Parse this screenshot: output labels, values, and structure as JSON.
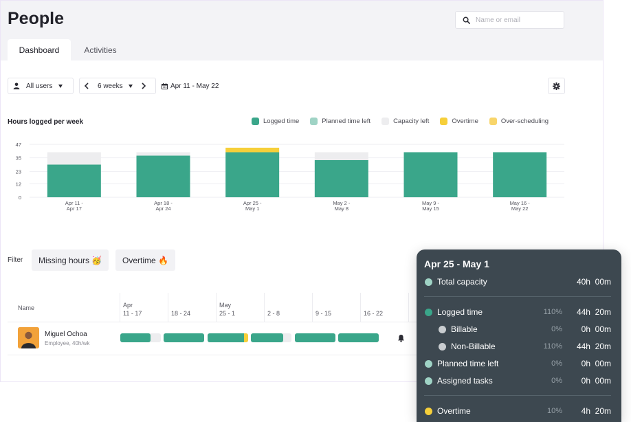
{
  "page": {
    "title": "People"
  },
  "search": {
    "placeholder": "Name or email"
  },
  "tabs": [
    {
      "label": "Dashboard",
      "active": true
    },
    {
      "label": "Activities",
      "active": false
    }
  ],
  "controls": {
    "users_label": "All users",
    "weeks_label": "6 weeks",
    "date_range": "Apr 11 - May 22"
  },
  "chart": {
    "title": "Hours logged per week"
  },
  "legend": [
    {
      "label": "Logged time",
      "color": "#3aa68a"
    },
    {
      "label": "Planned time left",
      "color": "#9fd3c5"
    },
    {
      "label": "Capacity left",
      "color": "#ededef"
    },
    {
      "label": "Overtime",
      "color": "#f6cf3a"
    },
    {
      "label": "Over-scheduling",
      "color": "#f8d56a"
    }
  ],
  "chart_data": {
    "type": "bar",
    "stacked": true,
    "title": "Hours logged per week",
    "categories": [
      "Apr 11 - Apr 17",
      "Apr 18 - Apr 24",
      "Apr 25 - May 1",
      "May 2 - May 8",
      "May 9 - May 15",
      "May 16 - May 22"
    ],
    "category_lines": [
      [
        "Apr 11 -",
        "Apr 17"
      ],
      [
        "Apr 18 -",
        "Apr 24"
      ],
      [
        "Apr 25 -",
        "May 1"
      ],
      [
        "May 2 -",
        "May 8"
      ],
      [
        "May 9 -",
        "May 15"
      ],
      [
        "May 16 -",
        "May 22"
      ]
    ],
    "yticks": [
      0,
      12,
      23,
      35,
      47
    ],
    "ylim": [
      0,
      47
    ],
    "series": [
      {
        "name": "Logged time",
        "color": "#3aa68a",
        "values": [
          29,
          37,
          40,
          33,
          40,
          40
        ]
      },
      {
        "name": "Capacity left",
        "color": "#ededef",
        "values": [
          11,
          3,
          0,
          7,
          0,
          0
        ]
      },
      {
        "name": "Overtime",
        "color": "#f6cf3a",
        "values": [
          0,
          0,
          4,
          0,
          0,
          0
        ]
      }
    ],
    "grid": true,
    "legend_position": "top-right"
  },
  "filter": {
    "label": "Filter",
    "chips": [
      {
        "label": "Missing hours 🥳"
      },
      {
        "label": "Overtime 🔥"
      }
    ]
  },
  "table": {
    "name_header": "Name",
    "week_columns": [
      {
        "month": "Apr",
        "range": "11 - 17"
      },
      {
        "month": "",
        "range": "18 - 24"
      },
      {
        "month": "May",
        "range": "25 - 1"
      },
      {
        "month": "",
        "range": "2 - 8"
      },
      {
        "month": "",
        "range": "9 - 15"
      },
      {
        "month": "",
        "range": "16 - 22"
      }
    ],
    "rows": [
      {
        "name": "Miguel Ochoa",
        "role": "Employee, 40h/wk",
        "weeks": [
          {
            "logged": 0.75,
            "overtime": 0
          },
          {
            "logged": 1.0,
            "overtime": 0
          },
          {
            "logged": 0.9,
            "overtime": 0.1
          },
          {
            "logged": 0.8,
            "overtime": 0
          },
          {
            "logged": 1.0,
            "overtime": 0
          },
          {
            "logged": 1.0,
            "overtime": 0
          }
        ]
      }
    ]
  },
  "tooltip": {
    "title": "Apr 25 - May 1",
    "rows": [
      {
        "label": "Total capacity",
        "percent": "",
        "value": "40h  00m",
        "dot_color": "#9fd3c5",
        "indent": false
      },
      {
        "label": "Logged time",
        "percent": "110%",
        "value": "44h  20m",
        "dot_color": "#3aa68a",
        "indent": false
      },
      {
        "label": "Billable",
        "percent": "0%",
        "value": "0h  00m",
        "dot_color": "#c9cdd0",
        "indent": true
      },
      {
        "label": "Non-Billable",
        "percent": "110%",
        "value": "44h  20m",
        "dot_color": "#c9cdd0",
        "indent": true
      },
      {
        "label": "Planned time left",
        "percent": "0%",
        "value": "0h  00m",
        "dot_color": "#9fd3c5",
        "indent": false
      },
      {
        "label": "Assigned tasks",
        "percent": "0%",
        "value": "0h  00m",
        "dot_color": "#9fd3c5",
        "indent": false
      },
      {
        "label": "Overtime",
        "percent": "10%",
        "value": "4h  20m",
        "dot_color": "#f6cf3a",
        "indent": false
      }
    ]
  }
}
